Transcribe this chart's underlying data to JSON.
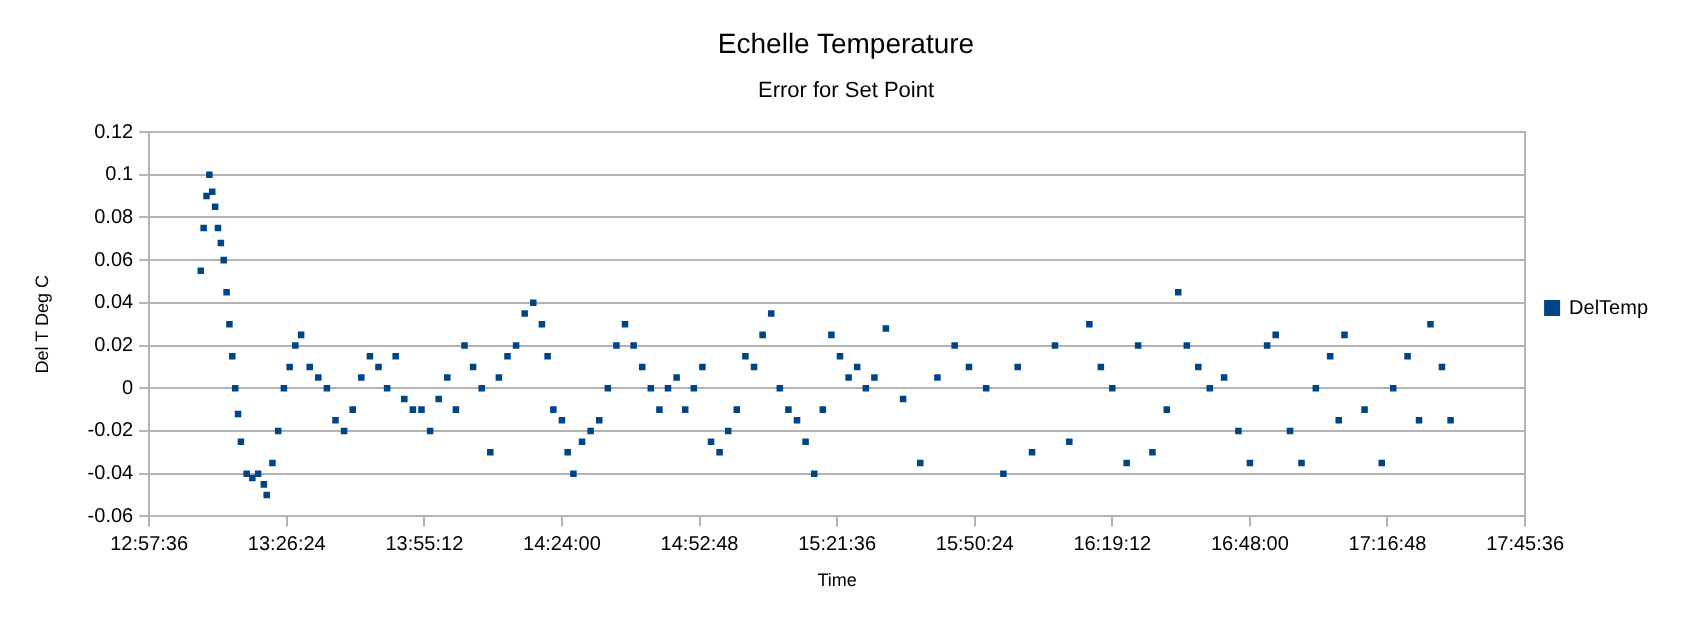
{
  "chart_data": {
    "type": "scatter",
    "title": "Echelle Temperature",
    "subtitle": "Error for Set Point",
    "xlabel": "Time",
    "ylabel": "Del T Deg C",
    "series": [
      {
        "name": "DelTemp",
        "color": "#004586",
        "x": [
          13.14,
          13.15,
          13.16,
          13.17,
          13.18,
          13.19,
          13.2,
          13.21,
          13.22,
          13.23,
          13.24,
          13.25,
          13.26,
          13.27,
          13.28,
          13.3,
          13.32,
          13.34,
          13.36,
          13.37,
          13.39,
          13.41,
          13.43,
          13.45,
          13.47,
          13.49,
          13.52,
          13.55,
          13.58,
          13.61,
          13.64,
          13.67,
          13.7,
          13.73,
          13.76,
          13.79,
          13.82,
          13.85,
          13.88,
          13.91,
          13.94,
          13.97,
          14.0,
          14.03,
          14.06,
          14.09,
          14.12,
          14.15,
          14.18,
          14.21,
          14.24,
          14.27,
          14.3,
          14.33,
          14.35,
          14.37,
          14.4,
          14.42,
          14.44,
          14.47,
          14.5,
          14.53,
          14.56,
          14.59,
          14.62,
          14.65,
          14.68,
          14.71,
          14.74,
          14.77,
          14.8,
          14.83,
          14.86,
          14.89,
          14.92,
          14.95,
          14.98,
          15.01,
          15.04,
          15.07,
          15.1,
          15.13,
          15.16,
          15.19,
          15.22,
          15.25,
          15.28,
          15.31,
          15.34,
          15.37,
          15.4,
          15.43,
          15.46,
          15.49,
          15.53,
          15.59,
          15.65,
          15.71,
          15.77,
          15.82,
          15.88,
          15.94,
          15.99,
          16.04,
          16.12,
          16.17,
          16.24,
          16.28,
          16.32,
          16.37,
          16.41,
          16.46,
          16.51,
          16.55,
          16.58,
          16.62,
          16.66,
          16.71,
          16.76,
          16.8,
          16.86,
          16.89,
          16.94,
          16.98,
          17.03,
          17.08,
          17.11,
          17.13,
          17.2,
          17.26,
          17.3,
          17.35,
          17.39,
          17.43,
          17.47,
          17.5
        ],
        "values": [
          0.055,
          0.075,
          0.09,
          0.1,
          0.092,
          0.085,
          0.075,
          0.068,
          0.06,
          0.045,
          0.03,
          0.015,
          0.0,
          -0.012,
          -0.025,
          -0.04,
          -0.042,
          -0.04,
          -0.045,
          -0.05,
          -0.035,
          -0.02,
          0.0,
          0.01,
          0.02,
          0.025,
          0.01,
          0.005,
          0.0,
          -0.015,
          -0.02,
          -0.01,
          0.005,
          0.015,
          0.01,
          0.0,
          0.015,
          -0.005,
          -0.01,
          -0.01,
          -0.02,
          -0.005,
          0.005,
          -0.01,
          0.02,
          0.01,
          0.0,
          -0.03,
          0.005,
          0.015,
          0.02,
          0.035,
          0.04,
          0.03,
          0.015,
          -0.01,
          -0.015,
          -0.03,
          -0.04,
          -0.025,
          -0.02,
          -0.015,
          0.0,
          0.02,
          0.03,
          0.02,
          0.01,
          0.0,
          -0.01,
          0.0,
          0.005,
          -0.01,
          0.0,
          0.01,
          -0.025,
          -0.03,
          -0.02,
          -0.01,
          0.015,
          0.01,
          0.025,
          0.035,
          0.0,
          -0.01,
          -0.015,
          -0.025,
          -0.04,
          -0.01,
          0.025,
          0.015,
          0.005,
          0.01,
          0.0,
          0.005,
          0.028,
          -0.005,
          -0.035,
          0.005,
          0.02,
          0.01,
          0.0,
          -0.04,
          0.01,
          -0.03,
          0.02,
          -0.025,
          0.03,
          0.01,
          0.0,
          -0.035,
          0.02,
          -0.03,
          -0.01,
          0.045,
          0.02,
          0.01,
          0.0,
          0.005,
          -0.02,
          -0.035,
          0.02,
          0.025,
          -0.02,
          -0.035,
          0.0,
          0.015,
          -0.015,
          0.025,
          -0.01,
          -0.035,
          0.0,
          0.015,
          -0.015,
          0.03,
          0.01,
          -0.015
        ]
      }
    ],
    "xlim": [
      12.96,
      17.76
    ],
    "xticks": [
      {
        "value": 12.96,
        "label": "12:57:36"
      },
      {
        "value": 13.44,
        "label": "13:26:24"
      },
      {
        "value": 13.92,
        "label": "13:55:12"
      },
      {
        "value": 14.4,
        "label": "14:24:00"
      },
      {
        "value": 14.88,
        "label": "14:52:48"
      },
      {
        "value": 15.36,
        "label": "15:21:36"
      },
      {
        "value": 15.84,
        "label": "15:50:24"
      },
      {
        "value": 16.32,
        "label": "16:19:12"
      },
      {
        "value": 16.8,
        "label": "16:48:00"
      },
      {
        "value": 17.28,
        "label": "17:16:48"
      },
      {
        "value": 17.76,
        "label": "17:45:36"
      }
    ],
    "ylim": [
      -0.06,
      0.12
    ],
    "yticks": [
      -0.06,
      -0.04,
      -0.02,
      0,
      0.02,
      0.04,
      0.06,
      0.08,
      0.1,
      0.12
    ],
    "grid": "y",
    "legend": "right",
    "marker": "square"
  }
}
